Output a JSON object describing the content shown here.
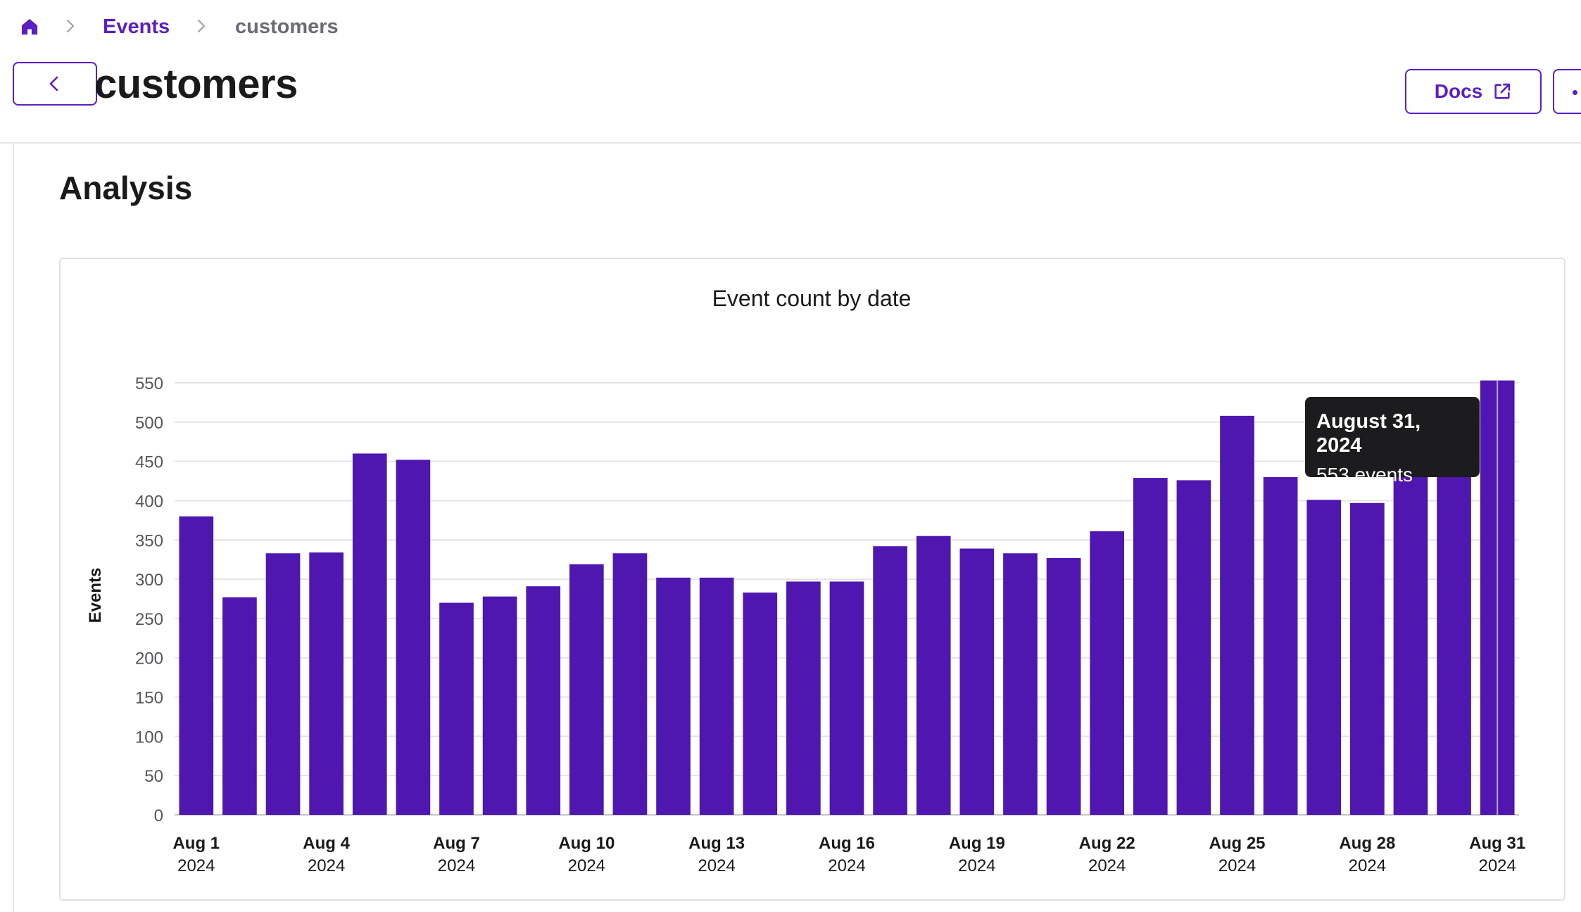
{
  "breadcrumb": {
    "home_icon": "home-icon",
    "items": [
      "Events",
      "customers"
    ]
  },
  "header": {
    "title": "customers",
    "docs_label": "Docs",
    "docs_icon": "external-link-icon",
    "back_icon": "chevron-left-icon",
    "more_icon": "more-icon"
  },
  "section": {
    "title": "Analysis"
  },
  "colors": {
    "accent": "#5b1fc3",
    "bar": "#4f17b0",
    "tooltip_bg": "#1c1c1e"
  },
  "tooltip": {
    "title": "August 31, 2024",
    "value": "553 events"
  },
  "chart_data": {
    "type": "bar",
    "title": "Event count by date",
    "xlabel": "",
    "ylabel": "Events",
    "ylim": [
      0,
      550
    ],
    "yticks": [
      0,
      50,
      100,
      150,
      200,
      250,
      300,
      350,
      400,
      450,
      500,
      550
    ],
    "grid": true,
    "categories": [
      "2024-08-01",
      "2024-08-02",
      "2024-08-03",
      "2024-08-04",
      "2024-08-05",
      "2024-08-06",
      "2024-08-07",
      "2024-08-08",
      "2024-08-09",
      "2024-08-10",
      "2024-08-11",
      "2024-08-12",
      "2024-08-13",
      "2024-08-14",
      "2024-08-15",
      "2024-08-16",
      "2024-08-17",
      "2024-08-18",
      "2024-08-19",
      "2024-08-20",
      "2024-08-21",
      "2024-08-22",
      "2024-08-23",
      "2024-08-24",
      "2024-08-25",
      "2024-08-26",
      "2024-08-27",
      "2024-08-28",
      "2024-08-29",
      "2024-08-30",
      "2024-08-31"
    ],
    "values": [
      380,
      277,
      333,
      334,
      460,
      452,
      270,
      278,
      291,
      319,
      333,
      302,
      302,
      283,
      297,
      297,
      342,
      355,
      339,
      333,
      327,
      361,
      429,
      426,
      508,
      430,
      401,
      397,
      441,
      458,
      553
    ],
    "xtick_labels": [
      {
        "index": 0,
        "date": "Aug 1",
        "year": "2024"
      },
      {
        "index": 3,
        "date": "Aug 4",
        "year": "2024"
      },
      {
        "index": 6,
        "date": "Aug 7",
        "year": "2024"
      },
      {
        "index": 9,
        "date": "Aug 10",
        "year": "2024"
      },
      {
        "index": 12,
        "date": "Aug 13",
        "year": "2024"
      },
      {
        "index": 15,
        "date": "Aug 16",
        "year": "2024"
      },
      {
        "index": 18,
        "date": "Aug 19",
        "year": "2024"
      },
      {
        "index": 21,
        "date": "Aug 22",
        "year": "2024"
      },
      {
        "index": 24,
        "date": "Aug 25",
        "year": "2024"
      },
      {
        "index": 27,
        "date": "Aug 28",
        "year": "2024"
      },
      {
        "index": 30,
        "date": "Aug 31",
        "year": "2024"
      }
    ],
    "highlighted_index": 30
  }
}
